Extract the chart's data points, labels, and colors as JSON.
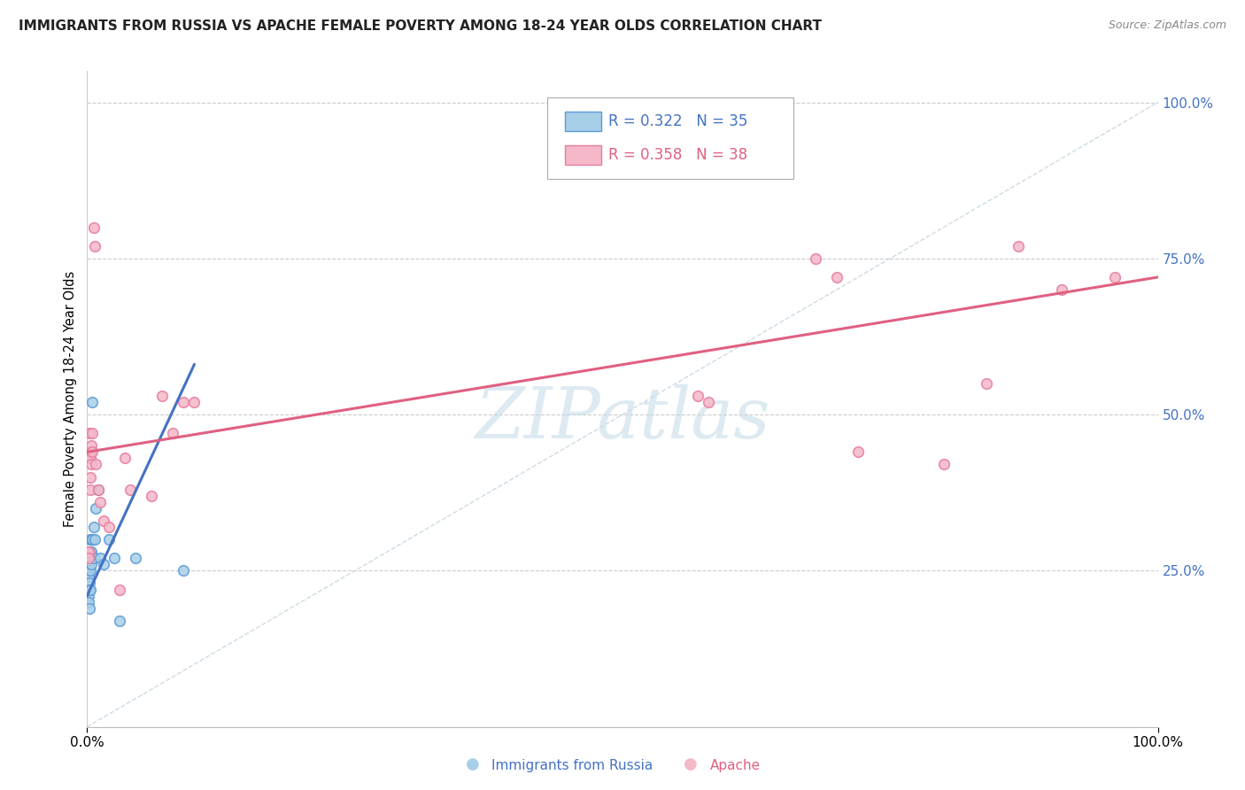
{
  "title": "IMMIGRANTS FROM RUSSIA VS APACHE FEMALE POVERTY AMONG 18-24 YEAR OLDS CORRELATION CHART",
  "source": "Source: ZipAtlas.com",
  "ylabel": "Female Poverty Among 18-24 Year Olds",
  "legend_label1": "Immigrants from Russia",
  "legend_label2": "Apache",
  "R1": 0.322,
  "N1": 35,
  "R2": 0.358,
  "N2": 38,
  "color_blue": "#a8cfe8",
  "color_blue_edge": "#5b9bd5",
  "color_blue_line": "#4472c4",
  "color_pink": "#f4b8c8",
  "color_pink_edge": "#e87ca0",
  "color_pink_line": "#e06080",
  "color_diag": "#b8ccd8",
  "watermark_color": "#c8dce8",
  "blue_scatter_x": [
    0.001,
    0.001,
    0.001,
    0.001,
    0.001,
    0.001,
    0.001,
    0.001,
    0.001,
    0.002,
    0.002,
    0.002,
    0.002,
    0.002,
    0.003,
    0.003,
    0.003,
    0.003,
    0.004,
    0.004,
    0.004,
    0.005,
    0.005,
    0.006,
    0.006,
    0.007,
    0.008,
    0.01,
    0.012,
    0.015,
    0.02,
    0.025,
    0.03,
    0.045,
    0.09
  ],
  "blue_scatter_y": [
    0.27,
    0.27,
    0.26,
    0.25,
    0.25,
    0.24,
    0.22,
    0.21,
    0.2,
    0.28,
    0.27,
    0.23,
    0.22,
    0.19,
    0.3,
    0.28,
    0.25,
    0.22,
    0.3,
    0.28,
    0.26,
    0.52,
    0.3,
    0.32,
    0.27,
    0.3,
    0.35,
    0.38,
    0.27,
    0.26,
    0.3,
    0.27,
    0.17,
    0.27,
    0.25
  ],
  "pink_scatter_x": [
    0.001,
    0.001,
    0.001,
    0.002,
    0.002,
    0.003,
    0.003,
    0.003,
    0.003,
    0.004,
    0.004,
    0.005,
    0.005,
    0.006,
    0.007,
    0.008,
    0.01,
    0.012,
    0.015,
    0.02,
    0.03,
    0.035,
    0.04,
    0.06,
    0.07,
    0.08,
    0.09,
    0.1,
    0.57,
    0.58,
    0.68,
    0.7,
    0.72,
    0.8,
    0.84,
    0.87,
    0.91,
    0.96
  ],
  "pink_scatter_y": [
    0.28,
    0.28,
    0.27,
    0.47,
    0.43,
    0.44,
    0.43,
    0.4,
    0.38,
    0.45,
    0.42,
    0.47,
    0.44,
    0.8,
    0.77,
    0.42,
    0.38,
    0.36,
    0.33,
    0.32,
    0.22,
    0.43,
    0.38,
    0.37,
    0.53,
    0.47,
    0.52,
    0.52,
    0.53,
    0.52,
    0.75,
    0.72,
    0.44,
    0.42,
    0.55,
    0.77,
    0.7,
    0.72
  ],
  "blue_line_x": [
    0.0,
    0.1
  ],
  "blue_line_y": [
    0.21,
    0.58
  ],
  "pink_line_x": [
    0.0,
    1.0
  ],
  "pink_line_y": [
    0.44,
    0.72
  ],
  "diag_line_x": [
    0.0,
    1.0
  ],
  "diag_line_y": [
    0.0,
    1.0
  ],
  "xlim": [
    0.0,
    1.0
  ],
  "ylim": [
    0.0,
    1.05
  ],
  "xticks": [
    0.0,
    1.0
  ],
  "xtick_labels": [
    "0.0%",
    "100.0%"
  ],
  "ytick_vals": [
    0.25,
    0.5,
    0.75,
    1.0
  ],
  "ytick_labels": [
    "25.0%",
    "50.0%",
    "75.0%",
    "100.0%"
  ]
}
